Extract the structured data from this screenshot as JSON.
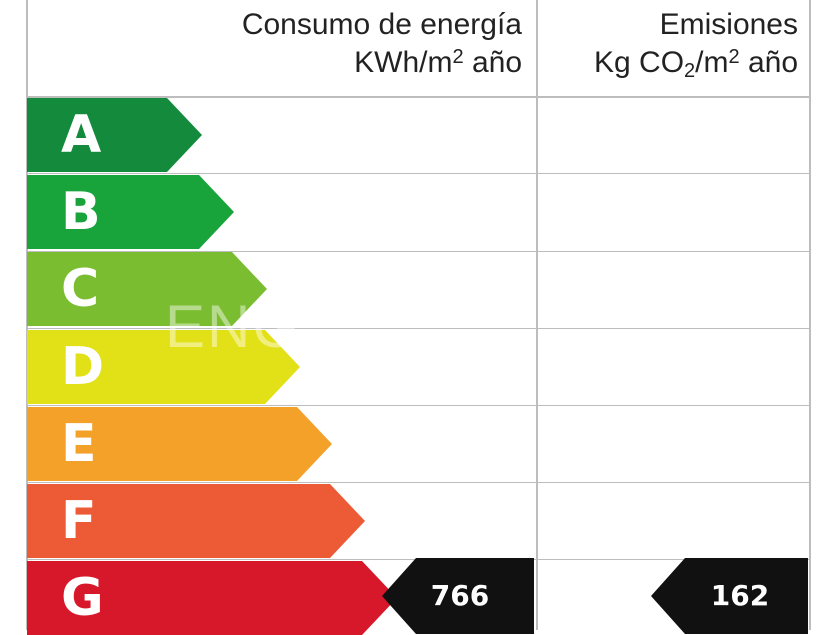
{
  "header": {
    "consumo_line1": "Consumo de energía",
    "consumo_line2_pre": "KWh/m",
    "consumo_line2_sup": "2",
    "consumo_line2_post": " año",
    "emisiones_line1": "Emisiones",
    "emisiones_line2_pre": "Kg CO",
    "emisiones_line2_sub": "2",
    "emisiones_line2_mid": "/m",
    "emisiones_line2_sup": "2",
    "emisiones_line2_post": " año"
  },
  "ratings": [
    {
      "letter": "A",
      "color": "#138a3c"
    },
    {
      "letter": "B",
      "color": "#18a33b"
    },
    {
      "letter": "C",
      "color": "#7bbd31"
    },
    {
      "letter": "D",
      "color": "#e2e016"
    },
    {
      "letter": "E",
      "color": "#f4a12a"
    },
    {
      "letter": "F",
      "color": "#ec5b35"
    },
    {
      "letter": "G",
      "color": "#d7182a"
    }
  ],
  "consumo_value": "766",
  "emisiones_value": "162",
  "pointer_color": "#111111",
  "watermark_text": "ENG"
}
